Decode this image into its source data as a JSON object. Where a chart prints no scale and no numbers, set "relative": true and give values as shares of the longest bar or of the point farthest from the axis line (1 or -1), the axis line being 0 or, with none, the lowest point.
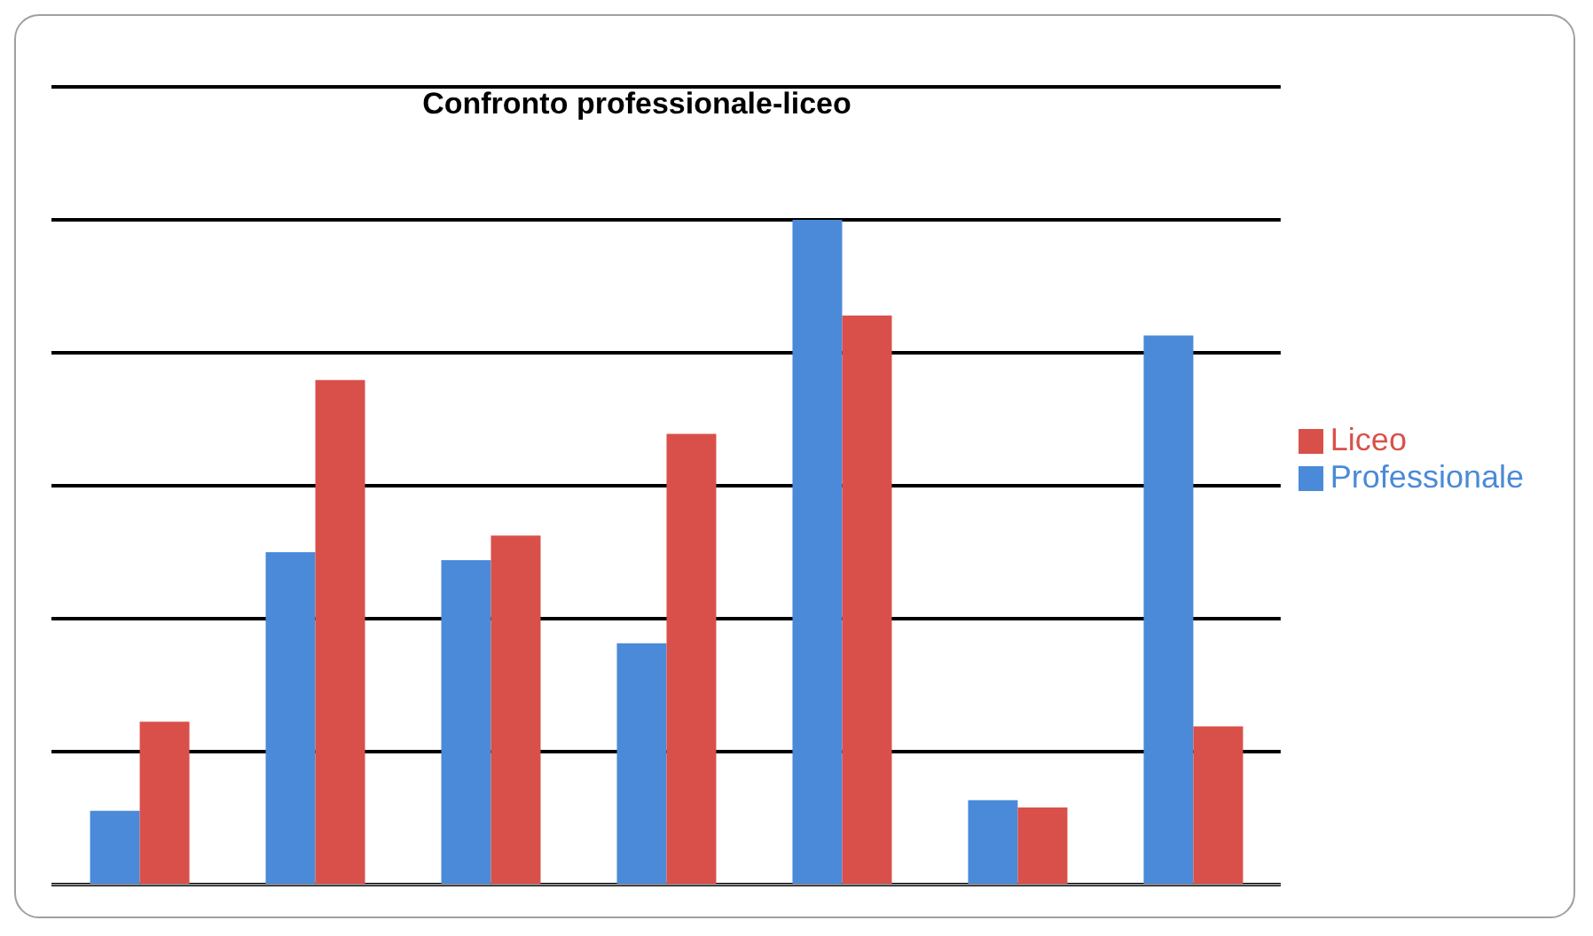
{
  "chart_data": {
    "type": "bar",
    "title": "Confronto professionale-liceo",
    "relative": true,
    "categories": [
      null,
      null,
      null,
      null,
      null,
      null,
      null
    ],
    "series": [
      {
        "name": "Professionale",
        "color": "#4a8ad8",
        "values": [
          0.111,
          0.5,
          0.488,
          0.363,
          1,
          0.127,
          0.826
        ]
      },
      {
        "name": "Liceo",
        "color": "#d9504a",
        "values": [
          0.245,
          0.759,
          0.525,
          0.678,
          0.856,
          0.116,
          0.238
        ]
      }
    ],
    "grid": "y",
    "legend": "right"
  }
}
